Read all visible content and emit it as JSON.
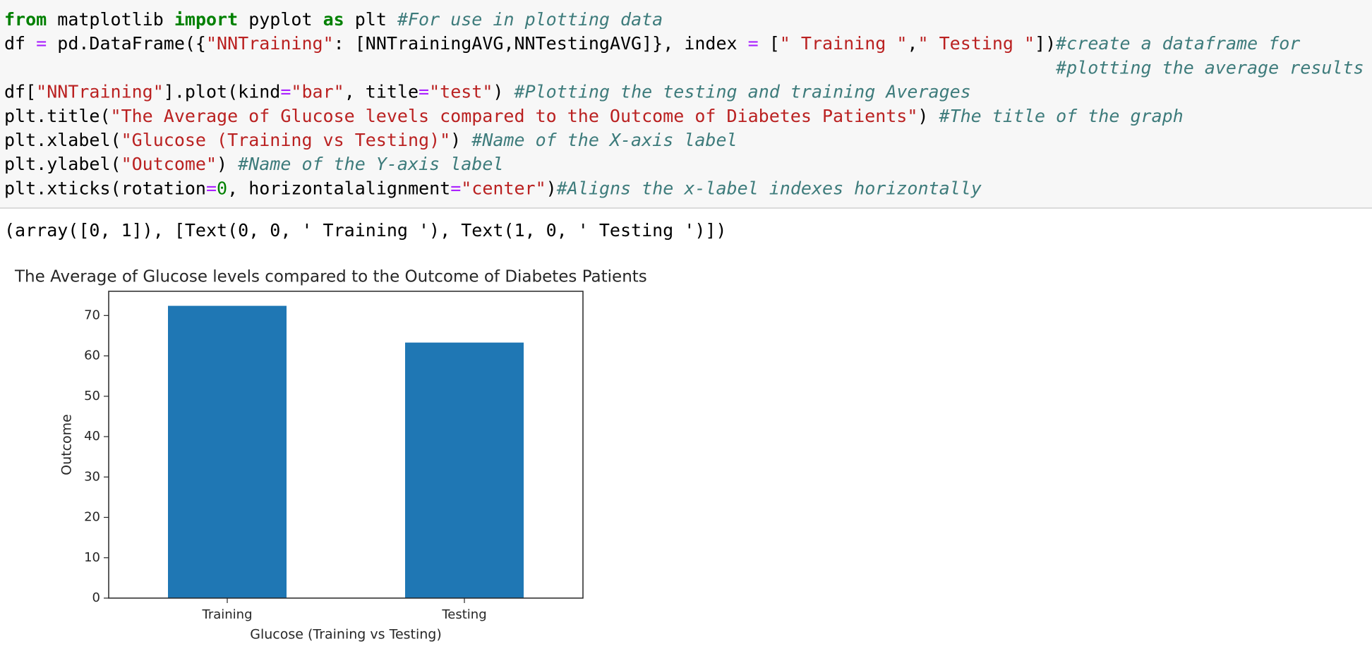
{
  "code": {
    "lines": [
      [
        {
          "text": "from",
          "color": "#008000",
          "weight": "bold"
        },
        {
          "text": " matplotlib ",
          "color": "#000000"
        },
        {
          "text": "import",
          "color": "#008000",
          "weight": "bold"
        },
        {
          "text": " pyplot ",
          "color": "#000000"
        },
        {
          "text": "as",
          "color": "#008000",
          "weight": "bold"
        },
        {
          "text": " plt ",
          "color": "#000000"
        },
        {
          "text": "#For use in plotting data",
          "color": "#3d7b7b",
          "style": "italic"
        }
      ],
      [
        {
          "text": "df ",
          "color": "#000000"
        },
        {
          "text": "=",
          "color": "#aa22ff"
        },
        {
          "text": " pd.DataFrame({",
          "color": "#000000"
        },
        {
          "text": "\"NNTraining\"",
          "color": "#ba2121"
        },
        {
          "text": ": [NNTrainingAVG,NNTestingAVG]}, index ",
          "color": "#000000"
        },
        {
          "text": "=",
          "color": "#aa22ff"
        },
        {
          "text": " [",
          "color": "#000000"
        },
        {
          "text": "\" Training \"",
          "color": "#ba2121"
        },
        {
          "text": ",",
          "color": "#000000"
        },
        {
          "text": "\" Testing \"",
          "color": "#ba2121"
        },
        {
          "text": "])",
          "color": "#000000"
        },
        {
          "text": "#create a dataframe for",
          "color": "#3d7b7b",
          "style": "italic"
        }
      ],
      [
        {
          "text": "                                                                                                   #plotting the average results",
          "color": "#3d7b7b",
          "style": "italic"
        }
      ],
      [
        {
          "text": "df[",
          "color": "#000000"
        },
        {
          "text": "\"NNTraining\"",
          "color": "#ba2121"
        },
        {
          "text": "].plot(kind",
          "color": "#000000"
        },
        {
          "text": "=",
          "color": "#aa22ff"
        },
        {
          "text": "\"bar\"",
          "color": "#ba2121"
        },
        {
          "text": ", title",
          "color": "#000000"
        },
        {
          "text": "=",
          "color": "#aa22ff"
        },
        {
          "text": "\"test\"",
          "color": "#ba2121"
        },
        {
          "text": ") ",
          "color": "#000000"
        },
        {
          "text": "#Plotting the testing and training Averages",
          "color": "#3d7b7b",
          "style": "italic"
        }
      ],
      [
        {
          "text": "plt.title(",
          "color": "#000000"
        },
        {
          "text": "\"The Average of Glucose levels compared to the Outcome of Diabetes Patients\"",
          "color": "#ba2121"
        },
        {
          "text": ") ",
          "color": "#000000"
        },
        {
          "text": "#The title of the graph",
          "color": "#3d7b7b",
          "style": "italic"
        }
      ],
      [
        {
          "text": "plt.xlabel(",
          "color": "#000000"
        },
        {
          "text": "\"Glucose (Training vs Testing)\"",
          "color": "#ba2121"
        },
        {
          "text": ") ",
          "color": "#000000"
        },
        {
          "text": "#Name of the X-axis label",
          "color": "#3d7b7b",
          "style": "italic"
        }
      ],
      [
        {
          "text": "plt.ylabel(",
          "color": "#000000"
        },
        {
          "text": "\"Outcome\"",
          "color": "#ba2121"
        },
        {
          "text": ") ",
          "color": "#000000"
        },
        {
          "text": "#Name of the Y-axis label",
          "color": "#3d7b7b",
          "style": "italic"
        }
      ],
      [
        {
          "text": "plt.xticks(rotation",
          "color": "#000000"
        },
        {
          "text": "=",
          "color": "#aa22ff"
        },
        {
          "text": "0",
          "color": "#008000"
        },
        {
          "text": ", horizontalalignment",
          "color": "#000000"
        },
        {
          "text": "=",
          "color": "#aa22ff"
        },
        {
          "text": "\"center\"",
          "color": "#ba2121"
        },
        {
          "text": ")",
          "color": "#000000"
        },
        {
          "text": "#Aligns the x-label indexes horizontally",
          "color": "#3d7b7b",
          "style": "italic"
        }
      ]
    ]
  },
  "output": "(array([0, 1]), [Text(0, 0, ' Training '), Text(1, 0, ' Testing ')])",
  "chart_data": {
    "type": "bar",
    "title": "The Average of Glucose levels compared to the Outcome of Diabetes Patients",
    "x_label": "Glucose (Training vs Testing)",
    "y_label": "Outcome",
    "categories": [
      "Training",
      "Testing"
    ],
    "values": [
      72.4,
      63.3
    ],
    "color": "#1f77b4",
    "ylim": [
      0,
      76
    ],
    "yticks": [
      0,
      10,
      20,
      30,
      40,
      50,
      60,
      70
    ]
  }
}
